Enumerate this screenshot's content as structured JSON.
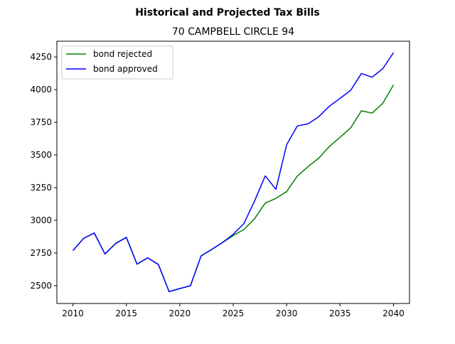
{
  "chart_data": {
    "type": "line",
    "suptitle": "Historical and Projected Tax Bills",
    "title": "70 CAMPBELL CIRCLE  94",
    "xlabel": "",
    "ylabel": "",
    "xlim": [
      2008.5,
      2041.5
    ],
    "ylim": [
      2364,
      4370
    ],
    "x_ticks": [
      2010,
      2015,
      2020,
      2025,
      2030,
      2035,
      2040
    ],
    "y_ticks": [
      2500,
      2750,
      3000,
      3250,
      3500,
      3750,
      4000,
      4250
    ],
    "legend_position": "top-left",
    "grid": false,
    "x": [
      2010,
      2011,
      2012,
      2013,
      2014,
      2015,
      2016,
      2017,
      2018,
      2019,
      2020,
      2021,
      2022,
      2023,
      2024,
      2025,
      2026,
      2027,
      2028,
      2029,
      2030,
      2031,
      2032,
      2033,
      2034,
      2035,
      2036,
      2037,
      2038,
      2039,
      2040
    ],
    "series": [
      {
        "name": "bond rejected",
        "color": "#008000",
        "values": [
          2768,
          2862,
          2903,
          2743,
          2823,
          2870,
          2665,
          2713,
          2662,
          2455,
          2478,
          2500,
          2728,
          2778,
          2830,
          2883,
          2930,
          3012,
          3132,
          3168,
          3220,
          3338,
          3410,
          3475,
          3565,
          3635,
          3708,
          3838,
          3820,
          3895,
          4035
        ]
      },
      {
        "name": "bond approved",
        "color": "#0000ff",
        "values": [
          2768,
          2862,
          2903,
          2743,
          2823,
          2870,
          2665,
          2713,
          2662,
          2455,
          2478,
          2500,
          2728,
          2778,
          2830,
          2893,
          2975,
          3148,
          3340,
          3237,
          3578,
          3722,
          3738,
          3792,
          3873,
          3933,
          3995,
          4123,
          4095,
          4160,
          4282
        ]
      }
    ]
  }
}
